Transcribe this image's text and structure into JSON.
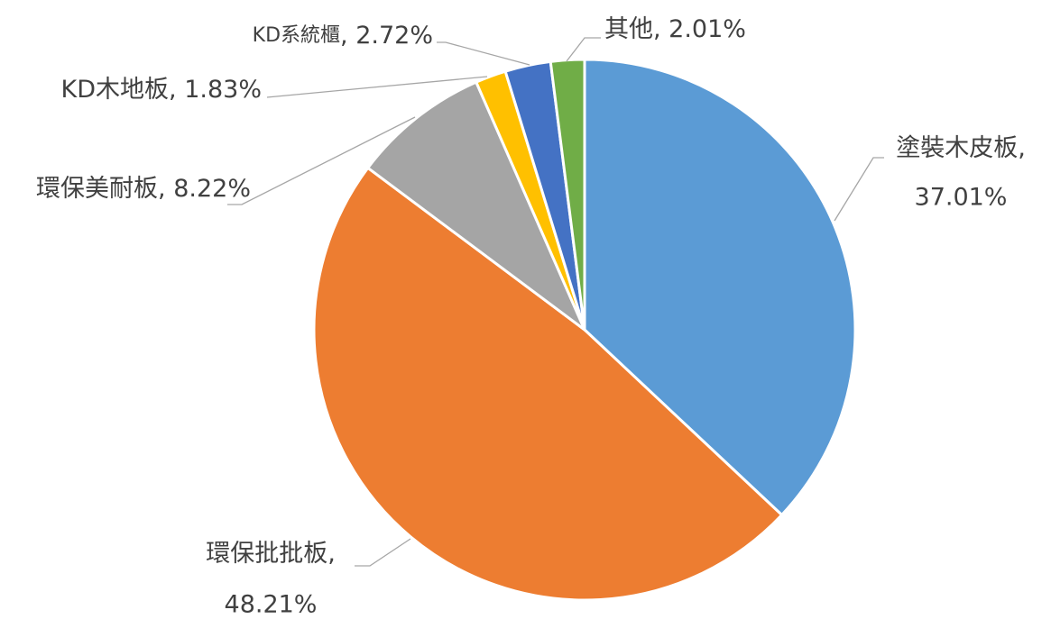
{
  "chart_data": {
    "type": "pie",
    "categories": [
      "塗裝木皮板",
      "環保批批板",
      "環保美耐板",
      "KD木地板",
      "KD系統櫃",
      "其他"
    ],
    "values": [
      37.01,
      48.21,
      8.22,
      1.83,
      2.72,
      2.01
    ],
    "value_labels": [
      "37.01%",
      "48.21%",
      "8.22%",
      "1.83%",
      "2.72%",
      "2.01%"
    ],
    "label_separator": ", ",
    "colors": [
      "#5b9bd5",
      "#ed7d31",
      "#a5a5a5",
      "#ffc000",
      "#4472c4",
      "#70ad47"
    ]
  }
}
